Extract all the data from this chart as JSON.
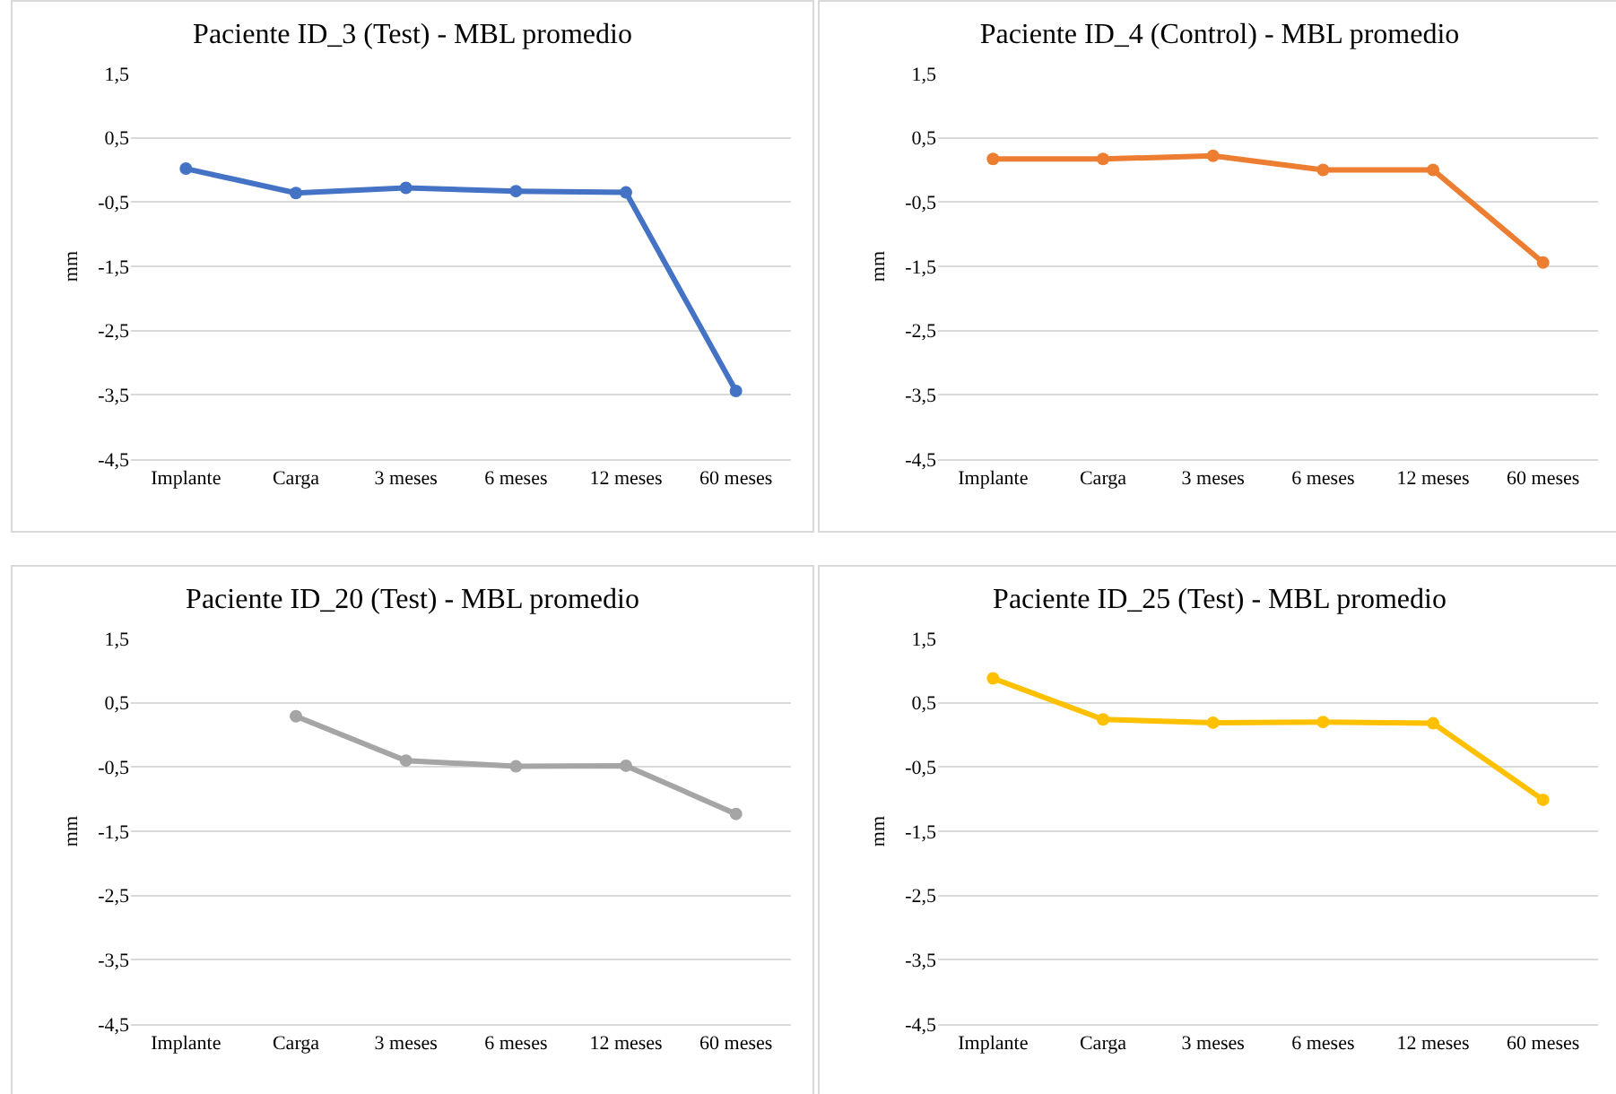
{
  "chart_data": [
    {
      "type": "line",
      "title": "Paciente ID_3 (Test) - MBL promedio",
      "ylabel": "mm",
      "categories": [
        "Implante",
        "Carga",
        "3 meses",
        "6 meses",
        "12 meses",
        "60 meses"
      ],
      "series": [
        {
          "color": "#4472c4",
          "values": [
            0.02,
            -0.36,
            -0.28,
            -0.33,
            -0.35,
            -3.44
          ]
        }
      ],
      "ylim": [
        -4.5,
        1.5
      ],
      "yticks": [
        {
          "value": -4.5,
          "label": "-4,5"
        },
        {
          "value": -3.5,
          "label": "-3,5"
        },
        {
          "value": -2.5,
          "label": "-2,5"
        },
        {
          "value": -1.5,
          "label": "-1,5"
        },
        {
          "value": -0.5,
          "label": "-0,5"
        },
        {
          "value": 0.5,
          "label": "0,5"
        },
        {
          "value": 1.5,
          "label": "1,5"
        }
      ],
      "grid": "y",
      "marker": "circle"
    },
    {
      "type": "line",
      "title": "Paciente ID_4 (Control) - MBL promedio",
      "ylabel": "mm",
      "categories": [
        "Implante",
        "Carga",
        "3 meses",
        "6 meses",
        "12 meses",
        "60 meses"
      ],
      "series": [
        {
          "color": "#ed7d31",
          "values": [
            0.17,
            0.17,
            0.22,
            0.0,
            0.0,
            -1.44
          ]
        }
      ],
      "ylim": [
        -4.5,
        1.5
      ],
      "yticks": [
        {
          "value": -4.5,
          "label": "-4,5"
        },
        {
          "value": -3.5,
          "label": "-3,5"
        },
        {
          "value": -2.5,
          "label": "-2,5"
        },
        {
          "value": -1.5,
          "label": "-1,5"
        },
        {
          "value": -0.5,
          "label": "-0,5"
        },
        {
          "value": 0.5,
          "label": "0,5"
        },
        {
          "value": 1.5,
          "label": "1,5"
        }
      ],
      "grid": "y",
      "marker": "circle"
    },
    {
      "type": "line",
      "title": "Paciente ID_20 (Test) - MBL promedio",
      "ylabel": "mm",
      "categories": [
        "Implante",
        "Carga",
        "3 meses",
        "6 meses",
        "12 meses",
        "60 meses"
      ],
      "series": [
        {
          "color": "#a5a5a5",
          "values": [
            null,
            0.29,
            -0.4,
            -0.49,
            -0.48,
            -1.23
          ]
        }
      ],
      "ylim": [
        -4.5,
        1.5
      ],
      "yticks": [
        {
          "value": -4.5,
          "label": "-4,5"
        },
        {
          "value": -3.5,
          "label": "-3,5"
        },
        {
          "value": -2.5,
          "label": "-2,5"
        },
        {
          "value": -1.5,
          "label": "-1,5"
        },
        {
          "value": -0.5,
          "label": "-0,5"
        },
        {
          "value": 0.5,
          "label": "0,5"
        },
        {
          "value": 1.5,
          "label": "1,5"
        }
      ],
      "grid": "y",
      "marker": "circle"
    },
    {
      "type": "line",
      "title": "Paciente ID_25 (Test) - MBL promedio",
      "ylabel": "mm",
      "categories": [
        "Implante",
        "Carga",
        "3 meses",
        "6 meses",
        "12 meses",
        "60 meses"
      ],
      "series": [
        {
          "color": "#ffc000",
          "values": [
            0.88,
            0.24,
            0.19,
            0.2,
            0.18,
            -1.01
          ]
        }
      ],
      "ylim": [
        -4.5,
        1.5
      ],
      "yticks": [
        {
          "value": -4.5,
          "label": "-4,5"
        },
        {
          "value": -3.5,
          "label": "-3,5"
        },
        {
          "value": -2.5,
          "label": "-2,5"
        },
        {
          "value": -1.5,
          "label": "-1,5"
        },
        {
          "value": -0.5,
          "label": "-0,5"
        },
        {
          "value": 0.5,
          "label": "0,5"
        },
        {
          "value": 1.5,
          "label": "1,5"
        }
      ],
      "grid": "y",
      "marker": "circle"
    }
  ]
}
